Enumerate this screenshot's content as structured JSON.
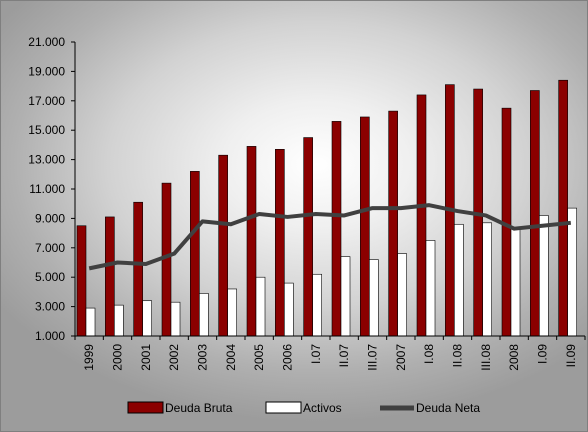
{
  "chart_data": {
    "type": "bar",
    "categories": [
      "1999",
      "2000",
      "2001",
      "2002",
      "2003",
      "2004",
      "2005",
      "2006",
      "I.07",
      "II.07",
      "III.07",
      "2007",
      "I.08",
      "II.08",
      "III.08",
      "2008",
      "I.09",
      "II.09"
    ],
    "y_tick_labels": [
      "1.000",
      "3.000",
      "5.000",
      "7.000",
      "9.000",
      "11.000",
      "13.000",
      "15.000",
      "17.000",
      "19.000",
      "21.000"
    ],
    "y_ticks": [
      1000,
      3000,
      5000,
      7000,
      9000,
      11000,
      13000,
      15000,
      17000,
      19000,
      21000
    ],
    "ylim": [
      1000,
      21000
    ],
    "series": [
      {
        "name": "Deuda Bruta",
        "kind": "bar",
        "color": "#8b0000",
        "values": [
          8500,
          9100,
          10100,
          11400,
          12200,
          13300,
          13900,
          13700,
          14500,
          15600,
          15900,
          16300,
          17400,
          18100,
          17800,
          16500,
          17700,
          18400
        ]
      },
      {
        "name": "Activos",
        "kind": "bar",
        "color": "#ffffff",
        "values": [
          2900,
          3100,
          3400,
          3300,
          3900,
          4200,
          5000,
          4600,
          5200,
          6400,
          6200,
          6600,
          7500,
          8600,
          8700,
          8300,
          9200,
          9700
        ]
      },
      {
        "name": "Deuda Neta",
        "kind": "line",
        "color": "#404040",
        "values": [
          5600,
          6000,
          5900,
          6600,
          8800,
          8600,
          9300,
          9100,
          9300,
          9200,
          9700,
          9700,
          9900,
          9500,
          9200,
          8300,
          8500,
          8700
        ]
      }
    ],
    "legend_position": "bottom",
    "grid": false
  }
}
